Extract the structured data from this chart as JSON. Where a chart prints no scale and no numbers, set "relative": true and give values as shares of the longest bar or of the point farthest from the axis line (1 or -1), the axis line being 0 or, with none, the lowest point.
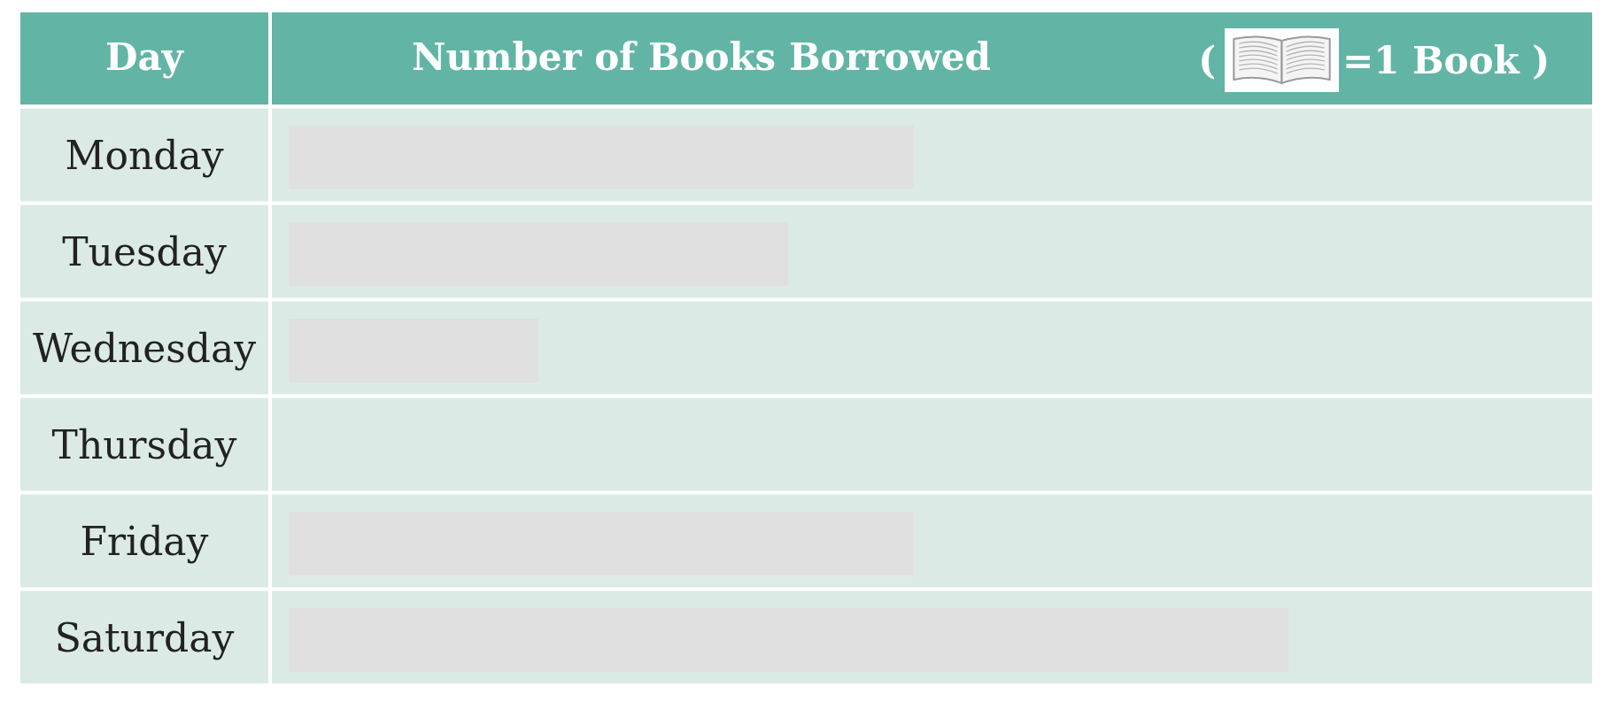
{
  "chart_data": {
    "type": "bar",
    "orientation": "horizontal",
    "relative": true,
    "title": "Number of Books Borrowed",
    "ylabel": "Day",
    "categories": [
      "Monday",
      "Tuesday",
      "Wednesday",
      "Thursday",
      "Friday",
      "Saturday"
    ],
    "series": [
      {
        "color": "#e0e0e0",
        "values": [
          0.625,
          0.5,
          0.25,
          0,
          0.625,
          1
        ]
      }
    ],
    "annotations": [
      "(",
      "=1 Book )"
    ]
  }
}
